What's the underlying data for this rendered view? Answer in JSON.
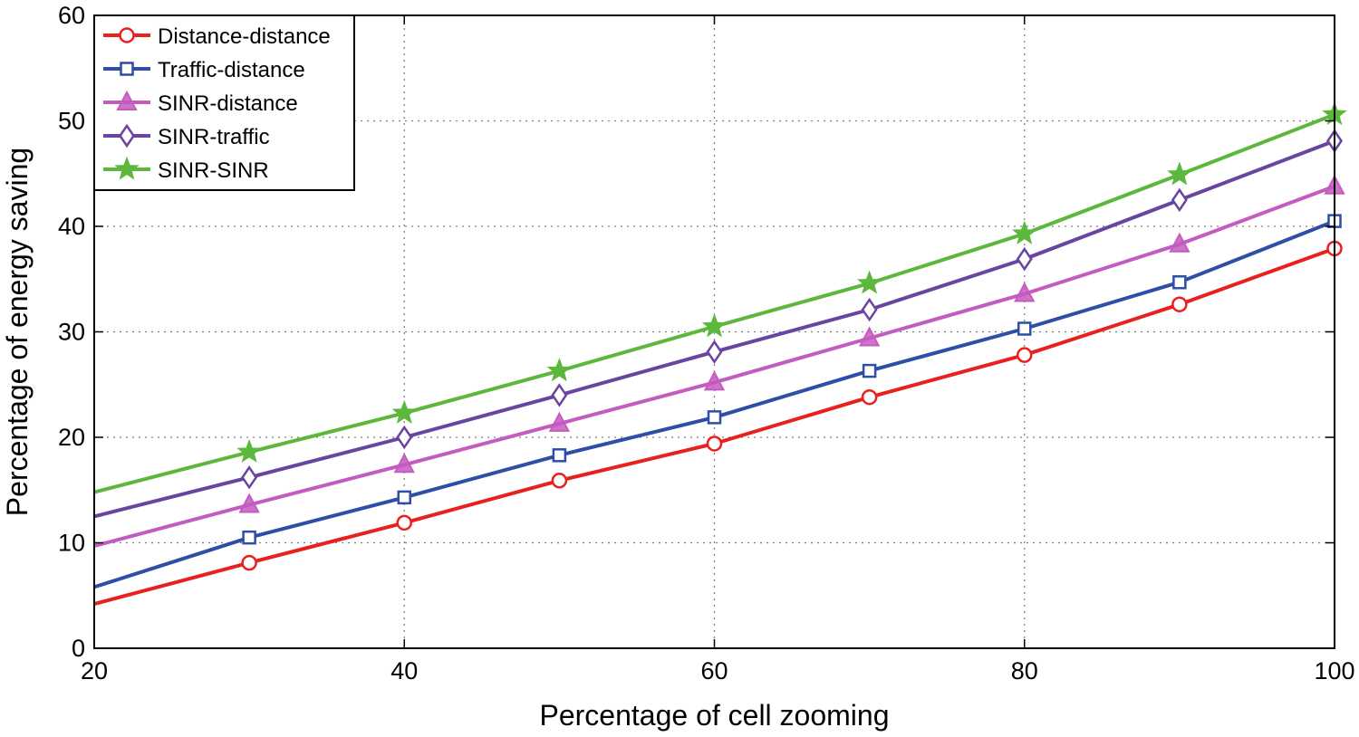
{
  "chart_data": {
    "type": "line",
    "title": "",
    "xlabel": "Percentage of cell zooming",
    "ylabel": "Percentage of energy saving",
    "xlim": [
      20,
      100
    ],
    "ylim": [
      0,
      60
    ],
    "xticks": [
      20,
      40,
      60,
      80,
      100
    ],
    "yticks": [
      0,
      10,
      20,
      30,
      40,
      50,
      60
    ],
    "x": [
      20,
      30,
      40,
      50,
      60,
      70,
      80,
      90,
      100
    ],
    "grid": true,
    "legend_position": "top-left",
    "series": [
      {
        "name": "Distance-distance",
        "color": "#e8201e",
        "marker": "circle",
        "values": [
          4.2,
          8.1,
          11.9,
          15.9,
          19.4,
          23.8,
          27.8,
          32.6,
          37.9
        ]
      },
      {
        "name": "Traffic-distance",
        "color": "#2e4fa5",
        "marker": "square",
        "values": [
          5.8,
          10.5,
          14.3,
          18.3,
          21.9,
          26.3,
          30.3,
          34.7,
          40.5
        ]
      },
      {
        "name": "SINR-distance",
        "color": "#c45bbf",
        "marker": "triangle",
        "values": [
          9.7,
          13.6,
          17.4,
          21.3,
          25.2,
          29.4,
          33.6,
          38.3,
          43.8
        ]
      },
      {
        "name": "SINR-traffic",
        "color": "#6a45a0",
        "marker": "diamond",
        "values": [
          12.5,
          16.2,
          20.0,
          24.0,
          28.1,
          32.1,
          36.9,
          42.5,
          48.1
        ]
      },
      {
        "name": "SINR-SINR",
        "color": "#5cb83c",
        "marker": "star",
        "values": [
          14.8,
          18.6,
          22.3,
          26.3,
          30.5,
          34.6,
          39.3,
          44.9,
          50.6
        ]
      }
    ]
  }
}
